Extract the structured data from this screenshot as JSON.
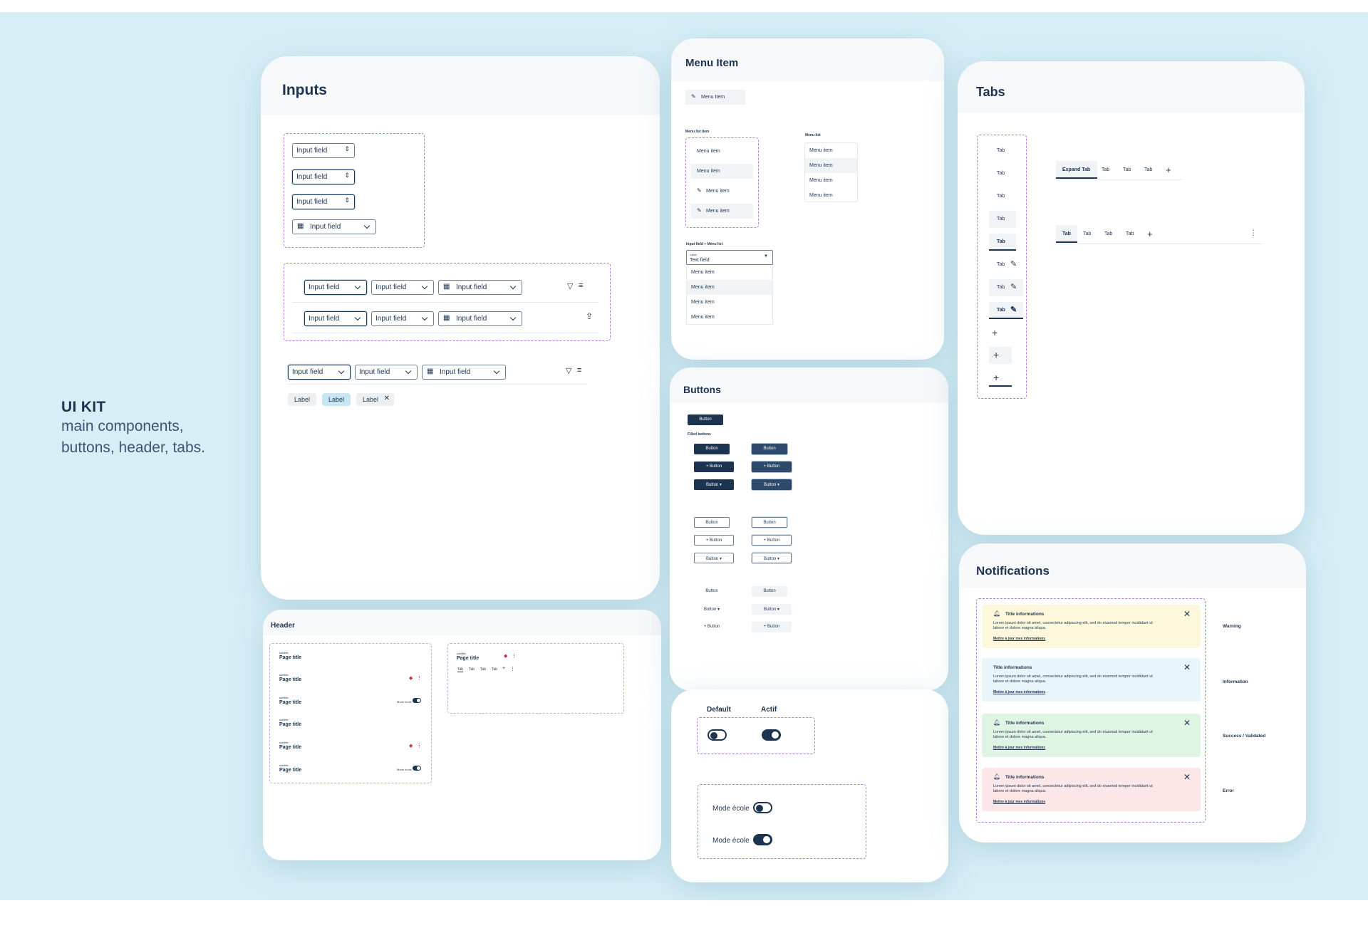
{
  "intro": {
    "title": "UI KIT",
    "line1": "main components,",
    "line2": "buttons, header, tabs."
  },
  "inputs": {
    "title": "Inputs",
    "field_label": "Input field",
    "chips": [
      "Label",
      "Label",
      "Label"
    ]
  },
  "menu": {
    "title": "Menu Item",
    "item_label": "Menu item",
    "top_item": "Menu Item",
    "list_item_caption": "Menu list item",
    "list_caption": "Menu list",
    "combo_caption": "Input field + Menu list",
    "combo_small_label": "Label",
    "combo_value": "Text field"
  },
  "buttons": {
    "title": "Buttons",
    "label": "Button",
    "plus_label": "+ Button",
    "filled_caption": "Filled buttons"
  },
  "toggles": {
    "default_label": "Default",
    "active_label": "Actif",
    "mode_label": "Mode école"
  },
  "tabs": {
    "title": "Tabs",
    "tab_label": "Tab",
    "expand_label": "Expand Tab"
  },
  "header": {
    "title": "Header",
    "subtitle": "subtitle",
    "page_title": "Page title",
    "mode_label": "Mode école",
    "tab_labels": [
      "Tab",
      "Tab",
      "Tab",
      "Tab"
    ]
  },
  "notifications": {
    "title": "Notifications",
    "items": [
      {
        "title": "Title informations",
        "body": "Lorem ipsum dolor sit amet, consectetur adipiscing elit, sed do eiusmod tempor incididunt ut labore et dolore magna aliqua.",
        "link": "Mettre à jour mes informations",
        "type": "Warning"
      },
      {
        "title": "Title informations",
        "body": "Lorem ipsum dolor sit amet, consectetur adipiscing elit, sed do eiusmod tempor incididunt ut labore et dolore magna aliqua.",
        "link": "Mettre à jour mes informations",
        "type": "Information"
      },
      {
        "title": "Title informations",
        "body": "Lorem ipsum dolor sit amet, consectetur adipiscing elit, sed do eiusmod tempor incididunt ut labore et dolore magna aliqua.",
        "link": "Mettre à jour mes informations",
        "type": "Success / Validated"
      },
      {
        "title": "Title informations",
        "body": "Lorem ipsum dolor sit amet, consectetur adipiscing elit, sed do eiusmod tempor incididunt ut labore et dolore magna aliqua.",
        "link": "Mettre à jour mes informations",
        "type": "Error"
      }
    ]
  },
  "colors": {
    "background": "#d6eef6",
    "primary": "#1d3450",
    "warning": "#fdf8dc",
    "information": "#e8f5fb",
    "success": "#dff4e3",
    "error": "#fde6e7"
  }
}
